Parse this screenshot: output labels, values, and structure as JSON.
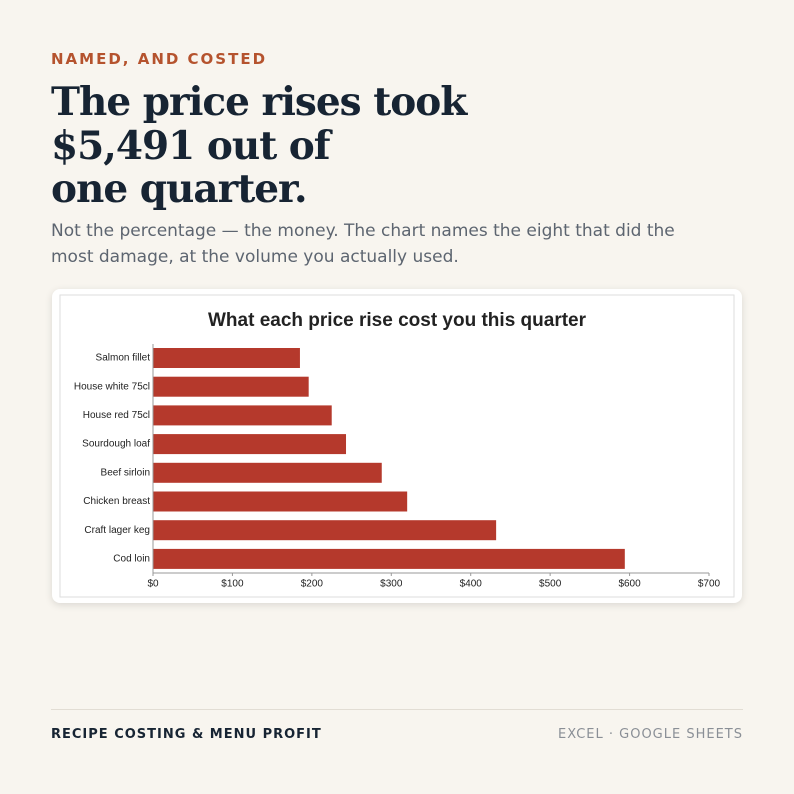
{
  "kicker": "NAMED, AND COSTED",
  "headline": [
    "The price rises took",
    "$5,491 out of",
    "one quarter."
  ],
  "subtitle": [
    "Not the percentage — the money. The chart names the eight that did the",
    "most damage, at the volume you actually used."
  ],
  "chart_data": {
    "type": "bar",
    "orientation": "horizontal",
    "title": "What each price rise cost you this quarter",
    "categories": [
      "Salmon fillet",
      "House white 75cl",
      "House red 75cl",
      "Sourdough loaf",
      "Beef sirloin",
      "Chicken breast",
      "Craft lager keg",
      "Cod loin"
    ],
    "values": [
      185,
      196,
      225,
      243,
      288,
      320,
      432,
      594
    ],
    "color": "#b5392c",
    "xlim": [
      0,
      700
    ],
    "xticks": [
      {
        "value": 0,
        "label": "$0"
      },
      {
        "value": 100,
        "label": "$100"
      },
      {
        "value": 200,
        "label": "$200"
      },
      {
        "value": 300,
        "label": "$300"
      },
      {
        "value": 400,
        "label": "$400"
      },
      {
        "value": 500,
        "label": "$500"
      },
      {
        "value": 600,
        "label": "$600"
      },
      {
        "value": 700,
        "label": "$700"
      }
    ]
  },
  "footer": {
    "left": "RECIPE COSTING & MENU PROFIT",
    "right": "EXCEL · GOOGLE SHEETS"
  }
}
